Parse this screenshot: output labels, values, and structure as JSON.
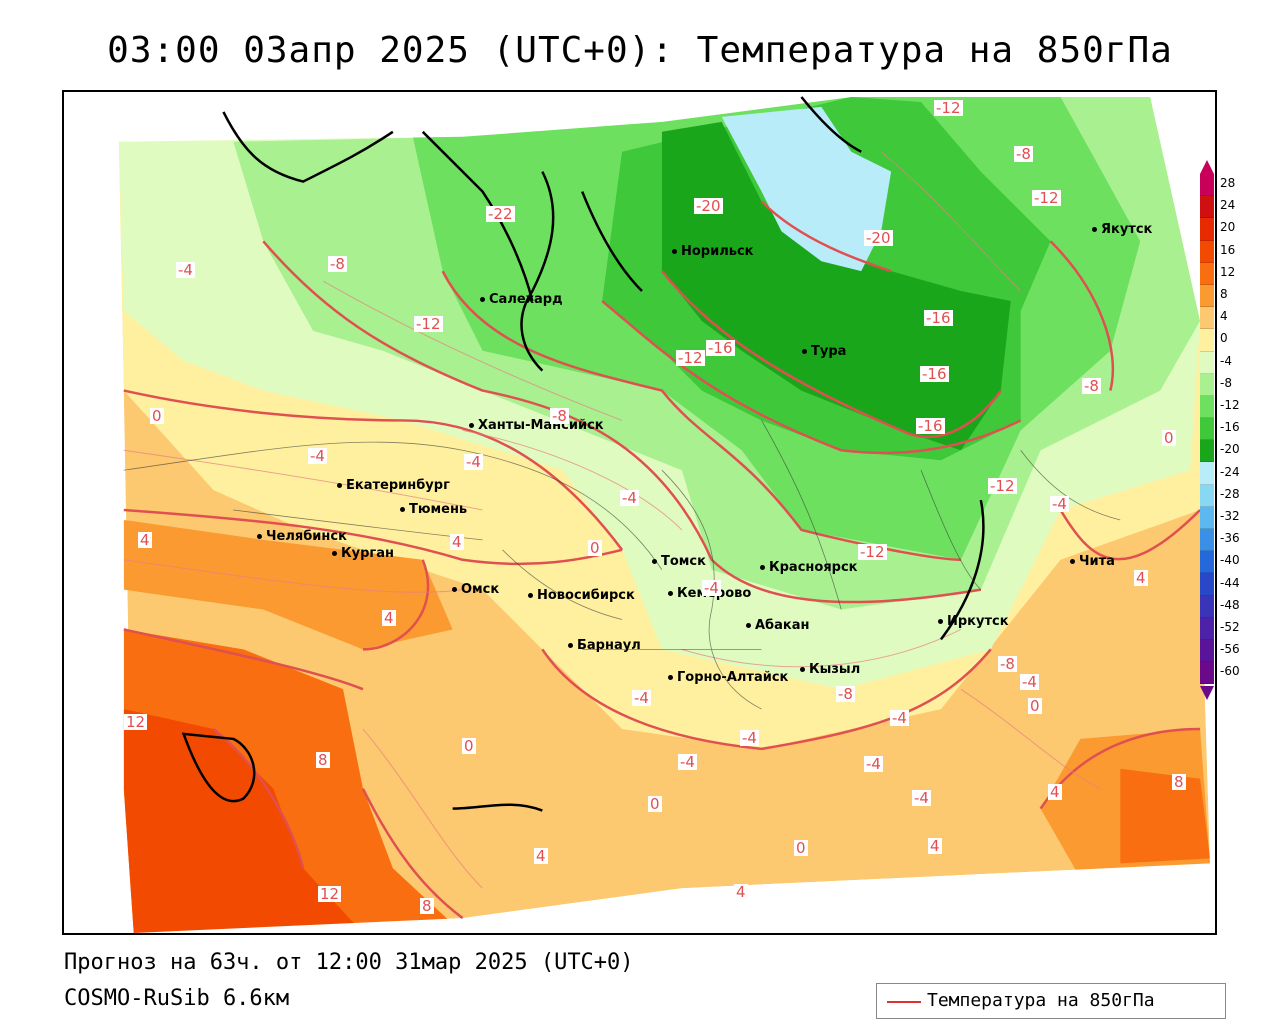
{
  "title": "03:00 03апр 2025 (UTC+0): Температура на 850гПа",
  "footer": {
    "forecast": "Прогноз на 63ч. от 12:00 31мар 2025 (UTC+0)",
    "model": "COSMO-RuSib 6.6км"
  },
  "legend": {
    "label": "Температура на 850гПа",
    "line_color": "#e03030"
  },
  "colorbar": {
    "labels": [
      "28",
      "24",
      "20",
      "16",
      "12",
      "8",
      "4",
      "0",
      "-4",
      "-8",
      "-12",
      "-16",
      "-20",
      "-24",
      "-28",
      "-32",
      "-36",
      "-40",
      "-44",
      "-48",
      "-52",
      "-56",
      "-60"
    ],
    "colors": [
      "#c8005a",
      "#d01010",
      "#e82a00",
      "#f24a00",
      "#f86e10",
      "#fa9a30",
      "#fcc870",
      "#fff0a0",
      "#e0fbc0",
      "#a8f090",
      "#6ee060",
      "#3ec83a",
      "#1aa61a",
      "#b8ecf8",
      "#88d8f4",
      "#5cb8ee",
      "#3a90e6",
      "#2468dc",
      "#2848c8",
      "#3a34b8",
      "#4e22a8",
      "#5a149a",
      "#6a0a8a"
    ]
  },
  "cities": [
    {
      "name": "Якутск"
    },
    {
      "name": "Норильск"
    },
    {
      "name": "Салехард"
    },
    {
      "name": "Тура"
    },
    {
      "name": "Ханты-Мансийск"
    },
    {
      "name": "Екатеринбург"
    },
    {
      "name": "Тюмень"
    },
    {
      "name": "Челябинск"
    },
    {
      "name": "Курган"
    },
    {
      "name": "Омск"
    },
    {
      "name": "Новосибирск"
    },
    {
      "name": "Томск"
    },
    {
      "name": "Кемерово"
    },
    {
      "name": "Красноярск"
    },
    {
      "name": "Барнаул"
    },
    {
      "name": "Абакан"
    },
    {
      "name": "Горно-Алтайск"
    },
    {
      "name": "Кызыл"
    },
    {
      "name": "Иркутск"
    },
    {
      "name": "Чита"
    }
  ],
  "contour_labels": [
    "-12",
    "-8",
    "-12",
    "-20",
    "-20",
    "-22",
    "-4",
    "-8",
    "-12",
    "-16",
    "-12",
    "-16",
    "-16",
    "-16",
    "-8",
    "0",
    "-8",
    "0",
    "-4",
    "-4",
    "-12",
    "-4",
    "-4",
    "4",
    "4",
    "0",
    "4",
    "-12",
    "-4",
    "-8",
    "-4",
    "4",
    "0",
    "12",
    "8",
    "-8",
    "-4",
    "-4",
    "-4",
    "-4",
    "0",
    "0",
    "-4",
    "-4",
    "4",
    "4",
    "8",
    "0",
    "12",
    "8",
    "4",
    "4"
  ]
}
